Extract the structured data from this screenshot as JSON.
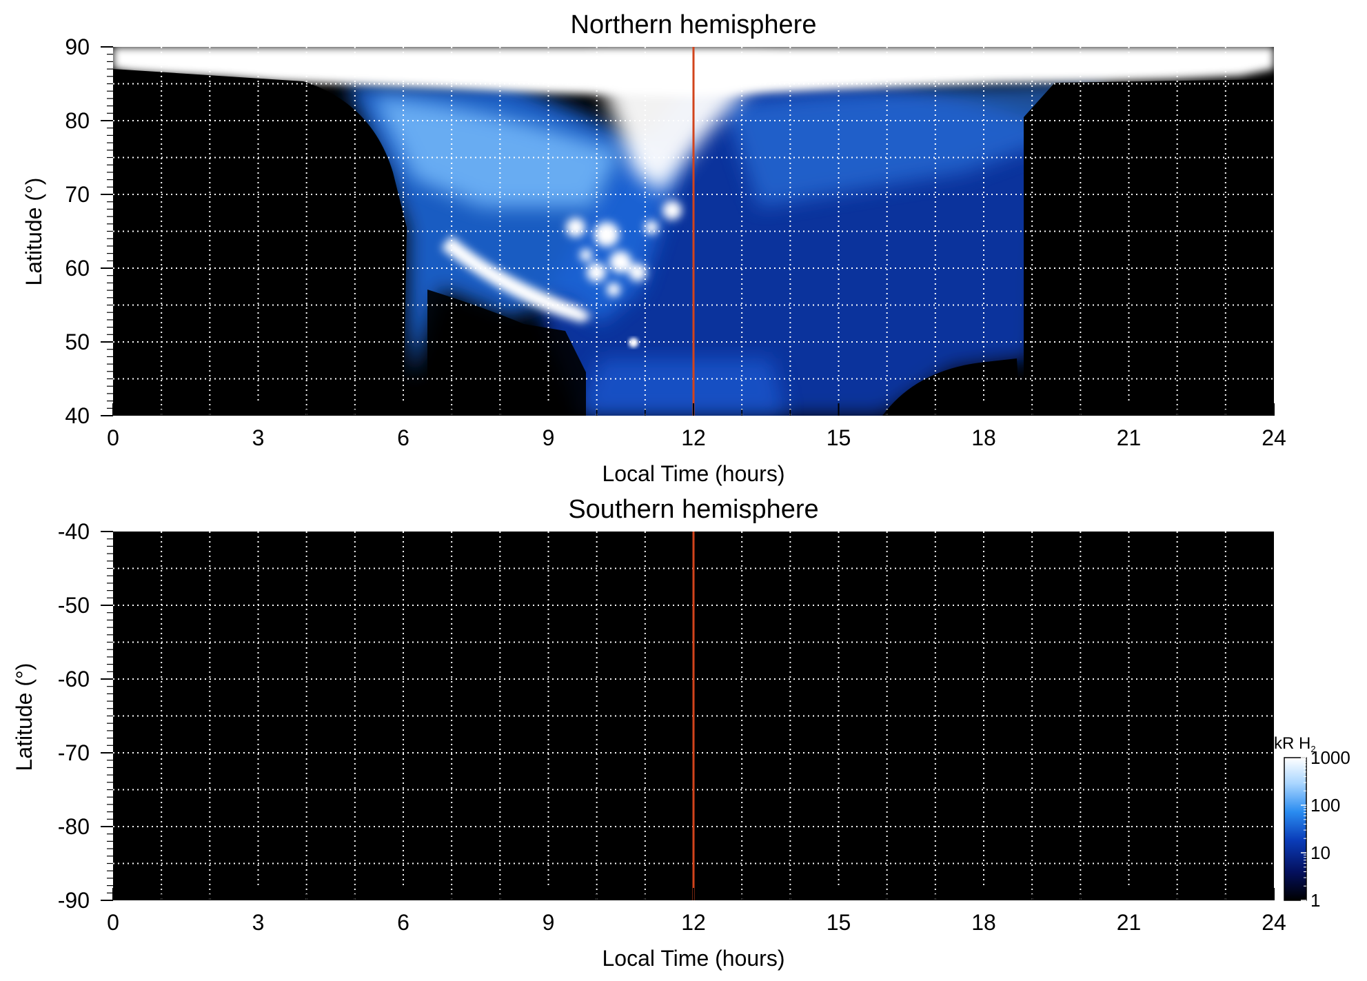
{
  "chart_data": [
    {
      "type": "heatmap",
      "title": "Northern hemisphere",
      "xlabel": "Local Time (hours)",
      "ylabel": "Latitude (°)",
      "xlim": [
        0,
        24
      ],
      "ylim": [
        40,
        90
      ],
      "x_ticks": [
        0,
        3,
        6,
        9,
        12,
        15,
        18,
        21,
        24
      ],
      "y_ticks": [
        40,
        50,
        60,
        70,
        80,
        90
      ],
      "grid": true,
      "vertical_marker": {
        "x": 12,
        "color": "#d2441c"
      },
      "features": [
        {
          "name": "polar bright band",
          "lt_range": [
            2.5,
            21.5
          ],
          "lat_range": [
            86,
            90
          ],
          "level_kR": 1000
        },
        {
          "name": "dawn oval arc",
          "lt_range": [
            6.8,
            10.0
          ],
          "lat_range": [
            54,
            65
          ],
          "level_kR": 1000
        },
        {
          "name": "noon patches",
          "lt_range": [
            9.3,
            11.5
          ],
          "lat_range": [
            56,
            68
          ],
          "level_kR": 1000
        },
        {
          "name": "bright spot",
          "lt_range": [
            10.7,
            10.9
          ],
          "lat_range": [
            49.5,
            50.5
          ],
          "level_kR": 1000
        },
        {
          "name": "afternoon diffuse emission",
          "lt_range": [
            12,
            19
          ],
          "lat_range": [
            40,
            85
          ],
          "level_kR": 100
        }
      ]
    },
    {
      "type": "heatmap",
      "title": "Southern hemisphere",
      "xlabel": "Local Time (hours)",
      "ylabel": "Latitude (°)",
      "xlim": [
        0,
        24
      ],
      "ylim": [
        -90,
        -40
      ],
      "x_ticks": [
        0,
        3,
        6,
        9,
        12,
        15,
        18,
        21,
        24
      ],
      "y_ticks": [
        -40,
        -50,
        -60,
        -70,
        -80,
        -90
      ],
      "grid": true,
      "vertical_marker": {
        "x": 12,
        "color": "#d2441c"
      },
      "features": []
    }
  ],
  "colorbar": {
    "label": "kR H",
    "label_sub": "2",
    "scale": "log",
    "ticks": [
      1,
      10,
      100,
      1000
    ],
    "colors": [
      "#000000",
      "#04105e",
      "#0a3cb8",
      "#2a8cf0",
      "#aad6ff",
      "#ffffff"
    ]
  }
}
